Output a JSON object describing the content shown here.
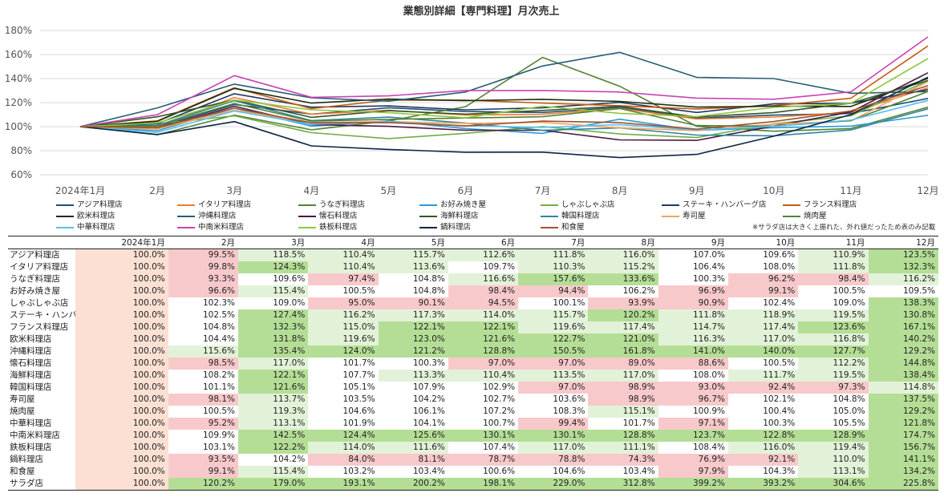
{
  "chart_data": {
    "type": "line",
    "title": "業態別詳細【専門料理】月次売上",
    "categories": [
      "2024年1月",
      "2月",
      "3月",
      "4月",
      "5月",
      "6月",
      "7月",
      "8月",
      "9月",
      "10月",
      "11月",
      "12月"
    ],
    "y_ticks": [
      "60%",
      "80%",
      "100%",
      "120%",
      "140%",
      "160%",
      "180%"
    ],
    "ylim": [
      60,
      180
    ],
    "grid": true,
    "legend_position": "bottom",
    "note": "※サラダ店は大きく上振れた、外れ値だったため表のみ記載",
    "series": [
      {
        "name": "アジア料理店",
        "color": "#1F4E79",
        "values": [
          100.0,
          99.5,
          118.5,
          110.4,
          115.7,
          112.6,
          111.8,
          116.0,
          107.0,
          109.6,
          110.9,
          123.5
        ]
      },
      {
        "name": "イタリア料理店",
        "color": "#ED7D31",
        "values": [
          100.0,
          99.8,
          124.3,
          110.4,
          113.6,
          109.7,
          110.3,
          115.2,
          106.4,
          108.0,
          111.8,
          132.3
        ]
      },
      {
        "name": "うなぎ料理店",
        "color": "#548235",
        "values": [
          100.0,
          93.3,
          109.6,
          97.4,
          104.8,
          116.6,
          157.6,
          133.6,
          100.3,
          96.2,
          98.4,
          116.2
        ]
      },
      {
        "name": "お好み焼き屋",
        "color": "#2E9BD6",
        "values": [
          100.0,
          96.6,
          115.4,
          100.5,
          104.8,
          98.4,
          94.4,
          106.2,
          96.9,
          99.1,
          100.5,
          109.5
        ]
      },
      {
        "name": "しゃぶしゃぶ店",
        "color": "#70AD47",
        "values": [
          100.0,
          102.3,
          109.0,
          95.0,
          90.1,
          94.5,
          100.1,
          93.9,
          90.9,
          102.4,
          109.0,
          138.3
        ]
      },
      {
        "name": "ステーキ・ハンバーグ店",
        "color": "#203864",
        "values": [
          100.0,
          102.5,
          127.4,
          116.2,
          117.3,
          114.0,
          115.7,
          120.2,
          111.8,
          118.9,
          119.5,
          130.8
        ]
      },
      {
        "name": "フランス料理店",
        "color": "#C55A11",
        "values": [
          100.0,
          104.8,
          132.3,
          115.0,
          122.1,
          122.1,
          119.6,
          117.4,
          114.7,
          117.4,
          123.6,
          167.1
        ]
      },
      {
        "name": "欧米料理店",
        "color": "#1E2D10",
        "values": [
          100.0,
          104.4,
          131.8,
          119.6,
          123.0,
          121.6,
          122.7,
          121.0,
          116.3,
          117.0,
          116.8,
          140.2
        ]
      },
      {
        "name": "沖縄料理店",
        "color": "#255E74",
        "values": [
          100.0,
          115.6,
          135.4,
          124.0,
          121.2,
          128.8,
          150.5,
          161.8,
          141.0,
          140.0,
          127.7,
          129.2
        ]
      },
      {
        "name": "懐石料理店",
        "color": "#4A1942",
        "values": [
          100.0,
          98.5,
          117.0,
          101.7,
          100.3,
          97.0,
          97.0,
          89.0,
          88.6,
          100.5,
          112.2,
          144.8
        ]
      },
      {
        "name": "海鮮料理店",
        "color": "#375623",
        "values": [
          100.0,
          108.2,
          122.1,
          107.7,
          113.3,
          110.4,
          113.5,
          117.0,
          108.0,
          111.7,
          119.5,
          138.4
        ]
      },
      {
        "name": "韓国料理店",
        "color": "#31859C",
        "values": [
          100.0,
          101.1,
          121.6,
          105.1,
          107.9,
          102.9,
          97.0,
          98.9,
          93.0,
          92.4,
          97.3,
          114.8
        ]
      },
      {
        "name": "寿司屋",
        "color": "#F4A460",
        "values": [
          100.0,
          98.1,
          113.7,
          103.5,
          104.2,
          102.7,
          103.6,
          98.9,
          96.7,
          102.1,
          104.8,
          137.5
        ]
      },
      {
        "name": "焼肉屋",
        "color": "#548235",
        "values": [
          100.0,
          100.5,
          119.3,
          104.6,
          106.1,
          107.2,
          108.3,
          115.1,
          100.9,
          100.4,
          105.0,
          129.2
        ]
      },
      {
        "name": "中華料理店",
        "color": "#5BC0EB",
        "values": [
          100.0,
          95.2,
          113.1,
          101.9,
          104.1,
          100.7,
          99.4,
          101.7,
          97.1,
          100.3,
          105.5,
          121.8
        ]
      },
      {
        "name": "中南米料理店",
        "color": "#C944B4",
        "values": [
          100.0,
          109.9,
          142.5,
          124.4,
          125.6,
          130.1,
          130.1,
          128.8,
          123.7,
          122.8,
          128.9,
          174.7
        ]
      },
      {
        "name": "鉄板料理店",
        "color": "#8DC63F",
        "values": [
          100.0,
          103.1,
          122.2,
          114.0,
          111.6,
          107.4,
          117.0,
          111.1,
          108.4,
          116.0,
          119.4,
          156.7
        ]
      },
      {
        "name": "鍋料理店",
        "color": "#0B2545",
        "values": [
          100.0,
          93.5,
          104.2,
          84.0,
          81.1,
          78.7,
          78.8,
          74.3,
          76.9,
          92.1,
          110.0,
          141.1
        ]
      },
      {
        "name": "和食屋",
        "color": "#A0522D",
        "values": [
          100.0,
          99.1,
          115.4,
          103.2,
          103.4,
          100.6,
          104.6,
          103.4,
          97.9,
          104.3,
          113.1,
          134.2
        ]
      }
    ]
  },
  "table": {
    "columns": [
      "",
      "2024年1月",
      "2月",
      "3月",
      "4月",
      "5月",
      "6月",
      "7月",
      "8月",
      "9月",
      "10月",
      "11月",
      "12月"
    ],
    "rows": [
      {
        "name": "アジア料理店",
        "cells": [
          "100.0%",
          "99.5%",
          "118.5%",
          "110.4%",
          "115.7%",
          "112.6%",
          "111.8%",
          "116.0%",
          "107.0%",
          "109.6%",
          "110.9%",
          "123.5%"
        ]
      },
      {
        "name": "イタリア料理店",
        "cells": [
          "100.0%",
          "99.8%",
          "124.3%",
          "110.4%",
          "113.6%",
          "109.7%",
          "110.3%",
          "115.2%",
          "106.4%",
          "108.0%",
          "111.8%",
          "132.3%"
        ]
      },
      {
        "name": "うなぎ料理店",
        "cells": [
          "100.0%",
          "93.3%",
          "109.6%",
          "97.4%",
          "104.8%",
          "116.6%",
          "157.6%",
          "133.6%",
          "100.3%",
          "96.2%",
          "98.4%",
          "116.2%"
        ]
      },
      {
        "name": "お好み焼き屋",
        "cells": [
          "100.0%",
          "96.6%",
          "115.4%",
          "100.5%",
          "104.8%",
          "98.4%",
          "94.4%",
          "106.2%",
          "96.9%",
          "99.1%",
          "100.5%",
          "109.5%"
        ]
      },
      {
        "name": "しゃぶしゃぶ店",
        "cells": [
          "100.0%",
          "102.3%",
          "109.0%",
          "95.0%",
          "90.1%",
          "94.5%",
          "100.1%",
          "93.9%",
          "90.9%",
          "102.4%",
          "109.0%",
          "138.3%"
        ]
      },
      {
        "name": "ステーキ・ハンバー",
        "cells": [
          "100.0%",
          "102.5%",
          "127.4%",
          "116.2%",
          "117.3%",
          "114.0%",
          "115.7%",
          "120.2%",
          "111.8%",
          "118.9%",
          "119.5%",
          "130.8%"
        ]
      },
      {
        "name": "フランス料理店",
        "cells": [
          "100.0%",
          "104.8%",
          "132.3%",
          "115.0%",
          "122.1%",
          "122.1%",
          "119.6%",
          "117.4%",
          "114.7%",
          "117.4%",
          "123.6%",
          "167.1%"
        ]
      },
      {
        "name": "欧米料理店",
        "cells": [
          "100.0%",
          "104.4%",
          "131.8%",
          "119.6%",
          "123.0%",
          "121.6%",
          "122.7%",
          "121.0%",
          "116.3%",
          "117.0%",
          "116.8%",
          "140.2%"
        ]
      },
      {
        "name": "沖縄料理店",
        "cells": [
          "100.0%",
          "115.6%",
          "135.4%",
          "124.0%",
          "121.2%",
          "128.8%",
          "150.5%",
          "161.8%",
          "141.0%",
          "140.0%",
          "127.7%",
          "129.2%"
        ]
      },
      {
        "name": "懐石料理店",
        "cells": [
          "100.0%",
          "98.5%",
          "117.0%",
          "101.7%",
          "100.3%",
          "97.0%",
          "97.0%",
          "89.0%",
          "88.6%",
          "100.5%",
          "112.2%",
          "144.8%"
        ]
      },
      {
        "name": "海鮮料理店",
        "cells": [
          "100.0%",
          "108.2%",
          "122.1%",
          "107.7%",
          "113.3%",
          "110.4%",
          "113.5%",
          "117.0%",
          "108.0%",
          "111.7%",
          "119.5%",
          "138.4%"
        ]
      },
      {
        "name": "韓国料理店",
        "cells": [
          "100.0%",
          "101.1%",
          "121.6%",
          "105.1%",
          "107.9%",
          "102.9%",
          "97.0%",
          "98.9%",
          "93.0%",
          "92.4%",
          "97.3%",
          "114.8%"
        ]
      },
      {
        "name": "寿司屋",
        "cells": [
          "100.0%",
          "98.1%",
          "113.7%",
          "103.5%",
          "104.2%",
          "102.7%",
          "103.6%",
          "98.9%",
          "96.7%",
          "102.1%",
          "104.8%",
          "137.5%"
        ]
      },
      {
        "name": "焼肉屋",
        "cells": [
          "100.0%",
          "100.5%",
          "119.3%",
          "104.6%",
          "106.1%",
          "107.2%",
          "108.3%",
          "115.1%",
          "100.9%",
          "100.4%",
          "105.0%",
          "129.2%"
        ]
      },
      {
        "name": "中華料理店",
        "cells": [
          "100.0%",
          "95.2%",
          "113.1%",
          "101.9%",
          "104.1%",
          "100.7%",
          "99.4%",
          "101.7%",
          "97.1%",
          "100.3%",
          "105.5%",
          "121.8%"
        ]
      },
      {
        "name": "中南米料理店",
        "cells": [
          "100.0%",
          "109.9%",
          "142.5%",
          "124.4%",
          "125.6%",
          "130.1%",
          "130.1%",
          "128.8%",
          "123.7%",
          "122.8%",
          "128.9%",
          "174.7%"
        ]
      },
      {
        "name": "鉄板料理店",
        "cells": [
          "100.0%",
          "103.1%",
          "122.2%",
          "114.0%",
          "111.6%",
          "107.4%",
          "117.0%",
          "111.1%",
          "108.4%",
          "116.0%",
          "119.4%",
          "156.7%"
        ]
      },
      {
        "name": "鍋料理店",
        "cells": [
          "100.0%",
          "93.5%",
          "104.2%",
          "84.0%",
          "81.1%",
          "78.7%",
          "78.8%",
          "74.3%",
          "76.9%",
          "92.1%",
          "110.0%",
          "141.1%"
        ]
      },
      {
        "name": "和食屋",
        "cells": [
          "100.0%",
          "99.1%",
          "115.4%",
          "103.2%",
          "103.4%",
          "100.6%",
          "104.6%",
          "103.4%",
          "97.9%",
          "104.3%",
          "113.1%",
          "134.2%"
        ]
      },
      {
        "name": "サラダ店",
        "cells": [
          "100.0%",
          "120.2%",
          "179.0%",
          "193.1%",
          "200.2%",
          "198.1%",
          "229.0%",
          "312.8%",
          "399.2%",
          "393.2%",
          "304.6%",
          "225.8%"
        ]
      }
    ],
    "colors": {
      "base_col": "#FBE0D3",
      "low": "#F8C9CB",
      "mid": "#E2F2D8",
      "high": "#B4DE95",
      "plain": "#FFFFFF"
    }
  }
}
